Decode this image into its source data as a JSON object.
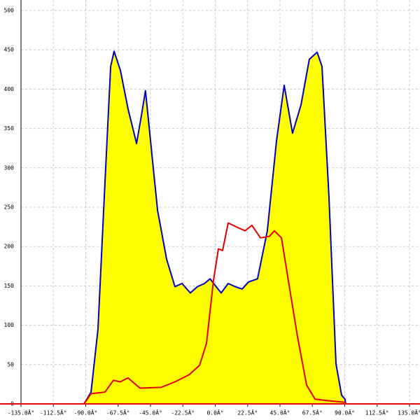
{
  "chart_data": {
    "type": "area-line",
    "xlim": [
      -135,
      135
    ],
    "ylim": [
      0,
      500
    ],
    "xticks": [
      {
        "value": -135,
        "label": "-135.0Â°"
      },
      {
        "value": -112.5,
        "label": "-112.5Â°"
      },
      {
        "value": -90,
        "label": "-90.0Â°"
      },
      {
        "value": -67.5,
        "label": "-67.5Â°"
      },
      {
        "value": -45,
        "label": "-45.0Â°"
      },
      {
        "value": -22.5,
        "label": "-22.5Â°"
      },
      {
        "value": 0,
        "label": "0.0Â°"
      },
      {
        "value": 22.5,
        "label": "22.5Â°"
      },
      {
        "value": 45,
        "label": "45.0Â°"
      },
      {
        "value": 67.5,
        "label": "67.5Â°"
      },
      {
        "value": 90,
        "label": "90.0Â°"
      },
      {
        "value": 112.5,
        "label": "112.5Â°"
      },
      {
        "value": 135,
        "label": "135.0Â°"
      }
    ],
    "yticks": [
      0,
      50,
      100,
      150,
      200,
      250,
      300,
      350,
      400,
      450,
      500
    ],
    "grid": true,
    "axis_color": "#e00000",
    "series": [
      {
        "color": "#0000c0",
        "fill": "#ffff00",
        "x": [
          -91.2,
          -86.3,
          -81.5,
          -76.6,
          -72.7,
          -70.3,
          -65.9,
          -60.6,
          -54.7,
          -51.3,
          -48.5,
          -45.0,
          -40.1,
          -33.8,
          -28.0,
          -23.1,
          -17.3,
          -12.4,
          -7.5,
          -3.6,
          0.2,
          4.1,
          9.0,
          13.9,
          18.7,
          23.1,
          29.4,
          36.2,
          42.6,
          47.9,
          53.7,
          59.6,
          65.4,
          70.8,
          74.2,
          79.0,
          83.9,
          87.8,
          90.2,
          90.7
        ],
        "values": [
          0,
          15,
          95,
          282,
          429,
          448,
          424,
          375,
          331,
          367,
          398,
          335,
          246,
          184,
          149,
          153,
          141,
          149,
          153,
          159,
          150,
          141,
          153,
          149,
          146,
          155,
          159,
          220,
          335,
          405,
          344,
          380,
          438,
          447,
          429,
          264,
          51,
          11,
          6,
          0
        ]
      },
      {
        "color": "#e00000",
        "x": [
          -91.2,
          -86.3,
          -76.6,
          -70.8,
          -66.0,
          -60.6,
          -52.3,
          -37.7,
          -28.0,
          -18.2,
          -10.9,
          -6.1,
          -1.2,
          2.2,
          5.1,
          9.0,
          15.8,
          20.7,
          25.5,
          31.4,
          37.7,
          41.1,
          46.0,
          52.3,
          57.1,
          63.5,
          69.3,
          79.0,
          90.2,
          90.7
        ],
        "values": [
          0,
          13,
          15,
          30,
          28,
          33,
          20,
          21,
          28,
          37,
          49,
          77,
          157,
          197,
          195,
          230,
          224,
          220,
          227,
          211,
          213,
          220,
          211,
          140,
          86,
          24,
          6,
          4,
          2,
          0
        ]
      }
    ]
  }
}
